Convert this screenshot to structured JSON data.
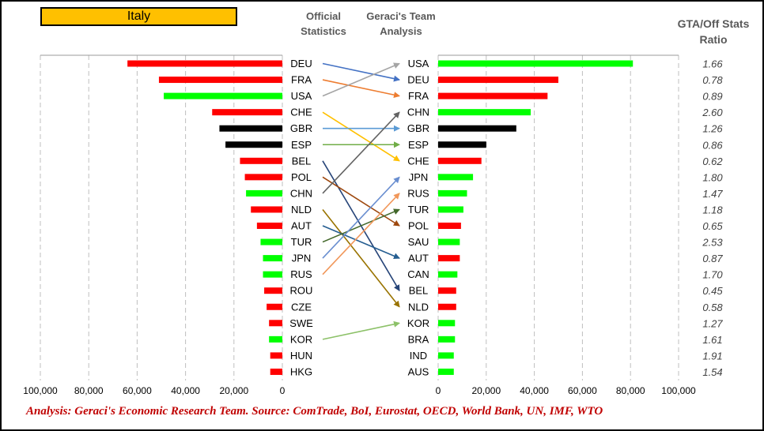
{
  "country": {
    "label": "Italy",
    "color": "#ffc000"
  },
  "headers": {
    "official_line1": "Official",
    "official_line2": "Statistics",
    "geraci_line1": "Geraci's Team",
    "geraci_line2": "Analysis",
    "ratio_line1": "GTA/Off Stats",
    "ratio_line2": "Ratio"
  },
  "footer": "Analysis: Geraci's Economic Research Team. Source: ComTrade, BoI, Eurostat, OECD, World Bank, UN, IMF, WTO",
  "colors": {
    "red": "#ff0000",
    "green": "#00ff00",
    "black": "#000000"
  },
  "chart_data": [
    {
      "type": "bar",
      "orientation": "horizontal",
      "direction": "reversed",
      "title": "Official Statistics",
      "categories": [
        "DEU",
        "FRA",
        "USA",
        "CHE",
        "GBR",
        "ESP",
        "BEL",
        "POL",
        "CHN",
        "NLD",
        "AUT",
        "TUR",
        "JPN",
        "RUS",
        "ROU",
        "CZE",
        "SWE",
        "KOR",
        "HUN",
        "HKG"
      ],
      "values": [
        64000,
        51000,
        49000,
        29000,
        26000,
        23500,
        17500,
        15500,
        15000,
        13000,
        10500,
        9000,
        8000,
        8000,
        7500,
        6500,
        5500,
        5500,
        5000,
        5000
      ],
      "bar_colors": [
        "red",
        "red",
        "green",
        "red",
        "black",
        "black",
        "red",
        "red",
        "green",
        "red",
        "red",
        "green",
        "green",
        "green",
        "red",
        "red",
        "red",
        "green",
        "red",
        "red"
      ],
      "xlim": [
        0,
        100000
      ],
      "ticks": [
        "100,000",
        "80,000",
        "60,000",
        "40,000",
        "20,000",
        "0"
      ],
      "grid": true
    },
    {
      "type": "bar",
      "orientation": "horizontal",
      "title": "Geraci's Team Analysis",
      "categories": [
        "USA",
        "DEU",
        "FRA",
        "CHN",
        "GBR",
        "ESP",
        "CHE",
        "JPN",
        "RUS",
        "TUR",
        "POL",
        "SAU",
        "AUT",
        "CAN",
        "BEL",
        "NLD",
        "KOR",
        "BRA",
        "IND",
        "AUS"
      ],
      "values": [
        81000,
        50000,
        45500,
        38500,
        32500,
        20000,
        18000,
        14500,
        12000,
        10500,
        9500,
        9000,
        9000,
        8000,
        7500,
        7500,
        7000,
        7000,
        6500,
        6500
      ],
      "bar_colors": [
        "green",
        "red",
        "red",
        "green",
        "black",
        "black",
        "red",
        "green",
        "green",
        "green",
        "red",
        "green",
        "red",
        "green",
        "red",
        "red",
        "green",
        "green",
        "green",
        "green"
      ],
      "xlim": [
        0,
        100000
      ],
      "ticks": [
        "0",
        "20,000",
        "40,000",
        "60,000",
        "80,000",
        "100,000"
      ],
      "grid": true
    }
  ],
  "ratios": [
    "1.66",
    "0.78",
    "0.89",
    "2.60",
    "1.26",
    "0.86",
    "0.62",
    "1.80",
    "1.47",
    "1.18",
    "0.65",
    "2.53",
    "0.87",
    "1.70",
    "0.45",
    "0.58",
    "1.27",
    "1.61",
    "1.91",
    "1.54"
  ],
  "arrows": [
    {
      "from": "DEU",
      "to": "DEU",
      "color": "#4472c4"
    },
    {
      "from": "FRA",
      "to": "FRA",
      "color": "#ed7d31"
    },
    {
      "from": "USA",
      "to": "USA",
      "color": "#a5a5a5"
    },
    {
      "from": "CHE",
      "to": "CHE",
      "color": "#ffc000"
    },
    {
      "from": "GBR",
      "to": "GBR",
      "color": "#5b9bd5"
    },
    {
      "from": "ESP",
      "to": "ESP",
      "color": "#70ad47"
    },
    {
      "from": "BEL",
      "to": "BEL",
      "color": "#264478"
    },
    {
      "from": "POL",
      "to": "POL",
      "color": "#9e480e"
    },
    {
      "from": "CHN",
      "to": "CHN",
      "color": "#636363"
    },
    {
      "from": "NLD",
      "to": "NLD",
      "color": "#997300"
    },
    {
      "from": "AUT",
      "to": "AUT",
      "color": "#255e91"
    },
    {
      "from": "TUR",
      "to": "TUR",
      "color": "#43682b"
    },
    {
      "from": "JPN",
      "to": "JPN",
      "color": "#698ed0"
    },
    {
      "from": "RUS",
      "to": "RUS",
      "color": "#f1975a"
    },
    {
      "from": "KOR",
      "to": "KOR",
      "color": "#8cc168"
    }
  ]
}
